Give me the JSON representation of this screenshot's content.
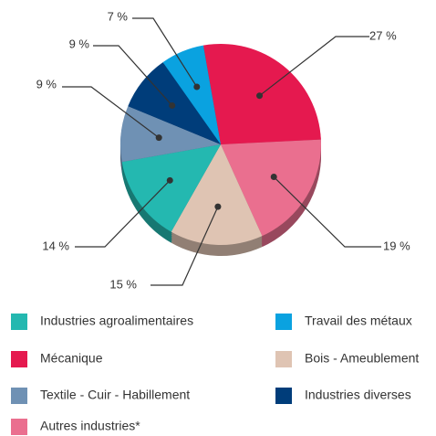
{
  "chart_data": {
    "type": "pie",
    "categories": [
      "Mécanique",
      "Autres industries*",
      "Bois - Ameublement",
      "Industries agroalimentaires",
      "Textile - Cuir - Habillement",
      "Industries diverses",
      "Travail des métaux"
    ],
    "values": [
      27,
      19,
      15,
      14,
      9,
      9,
      7
    ],
    "value_labels": [
      "27 %",
      "19 %",
      "15 %",
      "14 %",
      "9 %",
      "9 %",
      "7 %"
    ],
    "colors": [
      "#e5194f",
      "#ea6f8f",
      "#dfc4b3",
      "#24b8b0",
      "#6f91b4",
      "#003d7a",
      "#0aa2e0"
    ]
  }
}
